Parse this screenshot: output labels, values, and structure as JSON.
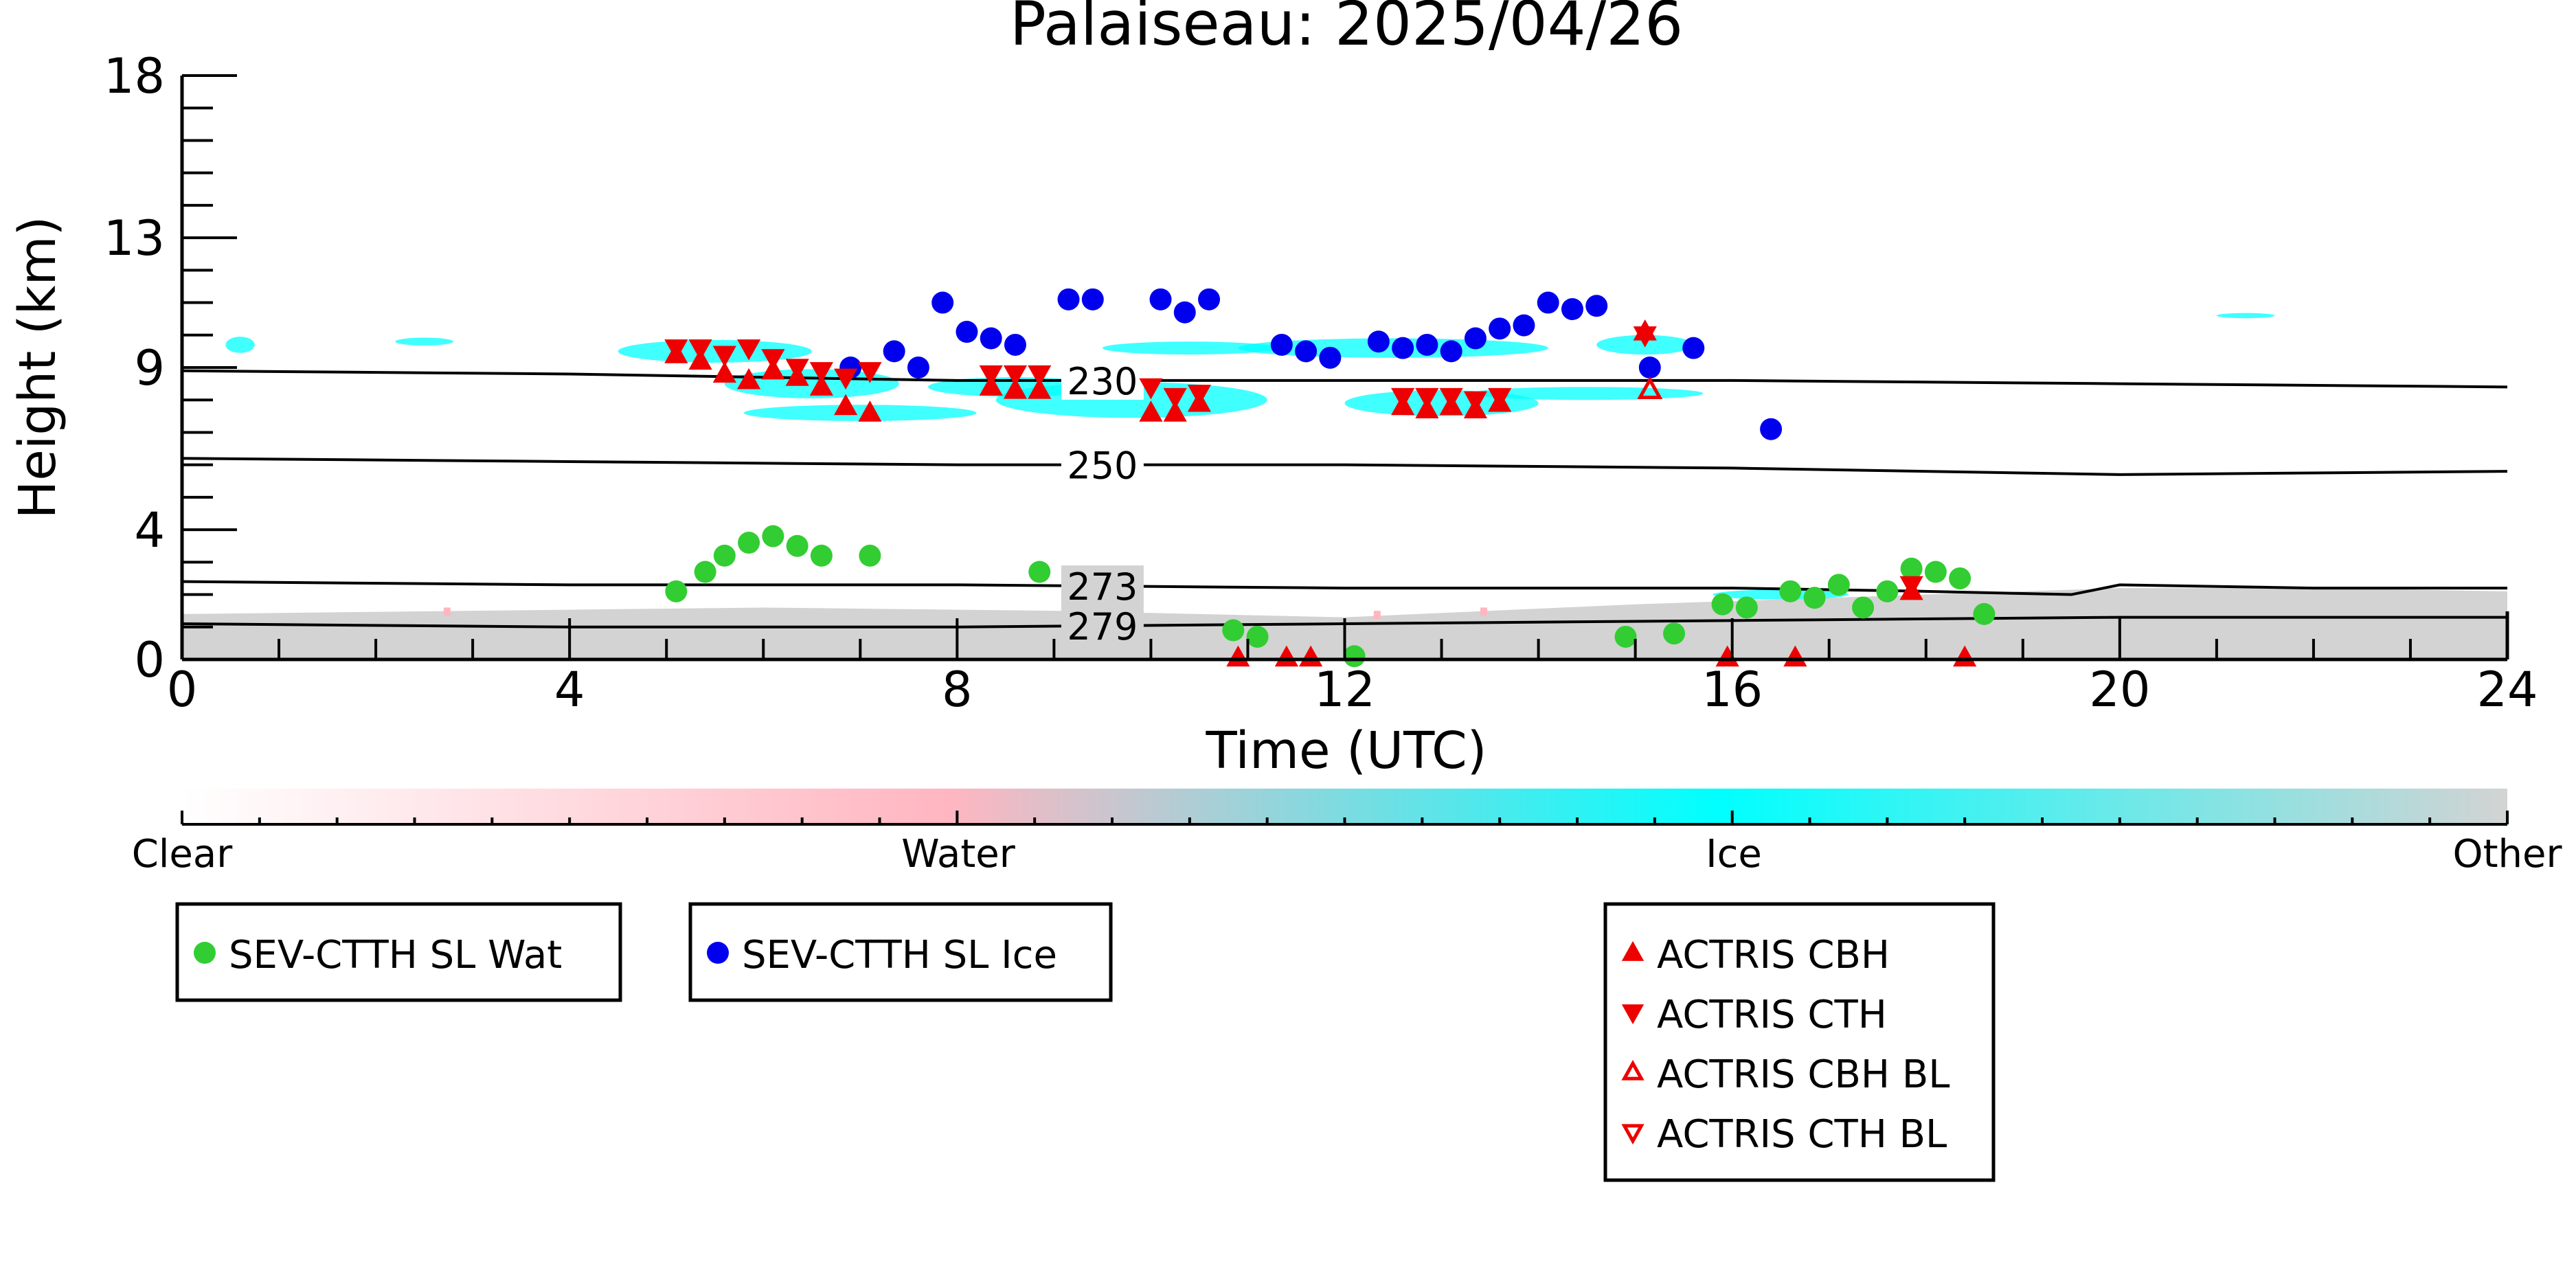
{
  "chart_data": {
    "type": "scatter",
    "title": "Palaiseau: 2025/04/26",
    "xlabel": "Time (UTC)",
    "ylabel": "Height (km)",
    "xlim": [
      0,
      24
    ],
    "ylim": [
      0,
      18
    ],
    "x_ticks": [
      0,
      4,
      8,
      12,
      16,
      20,
      24
    ],
    "y_ticks": [
      0,
      4,
      9,
      13,
      18
    ],
    "y_tick_labels": [
      "0",
      "4",
      "9",
      "13",
      "18"
    ],
    "grid": false,
    "colorbar": {
      "labels": [
        "Clear",
        "Water",
        "Ice",
        "Other"
      ],
      "colors": [
        "#ffffff",
        "#ffb6c1",
        "#00ffff",
        "#d3d3d3"
      ]
    },
    "temperature_contours": [
      {
        "label": "230",
        "label_x": 9.5,
        "points": [
          [
            0,
            8.9
          ],
          [
            4,
            8.8
          ],
          [
            8,
            8.6
          ],
          [
            12,
            8.6
          ],
          [
            16,
            8.6
          ],
          [
            20,
            8.5
          ],
          [
            24,
            8.4
          ]
        ]
      },
      {
        "label": "250",
        "label_x": 9.5,
        "points": [
          [
            0,
            6.2
          ],
          [
            4,
            6.1
          ],
          [
            8,
            6.0
          ],
          [
            12,
            6.0
          ],
          [
            16,
            5.9
          ],
          [
            20,
            5.7
          ],
          [
            24,
            5.8
          ]
        ]
      },
      {
        "label": "273",
        "label_x": 9.5,
        "points": [
          [
            0,
            2.4
          ],
          [
            4,
            2.3
          ],
          [
            8,
            2.3
          ],
          [
            12,
            2.2
          ],
          [
            16,
            2.2
          ],
          [
            18,
            2.1
          ],
          [
            19.5,
            2.0
          ],
          [
            20,
            2.3
          ],
          [
            22,
            2.2
          ],
          [
            24,
            2.2
          ]
        ]
      },
      {
        "label": "279",
        "label_x": 9.5,
        "points": [
          [
            0,
            1.1
          ],
          [
            4,
            1.0
          ],
          [
            8,
            1.0
          ],
          [
            12,
            1.1
          ],
          [
            16,
            1.2
          ],
          [
            20,
            1.3
          ],
          [
            24,
            1.3
          ]
        ]
      }
    ],
    "series": [
      {
        "name": "SEV-CTTH SL Wat",
        "marker": "circle",
        "color": "#32cd32",
        "points": [
          [
            5.1,
            2.1
          ],
          [
            5.4,
            2.7
          ],
          [
            5.6,
            3.2
          ],
          [
            5.85,
            3.6
          ],
          [
            6.1,
            3.8
          ],
          [
            6.35,
            3.5
          ],
          [
            6.6,
            3.2
          ],
          [
            7.1,
            3.2
          ],
          [
            8.85,
            2.7
          ],
          [
            10.85,
            0.9
          ],
          [
            11.1,
            0.7
          ],
          [
            12.1,
            0.1
          ],
          [
            14.9,
            0.7
          ],
          [
            15.4,
            0.8
          ],
          [
            15.9,
            1.7
          ],
          [
            16.15,
            1.6
          ],
          [
            16.6,
            2.1
          ],
          [
            16.85,
            1.9
          ],
          [
            17.1,
            2.3
          ],
          [
            17.35,
            1.6
          ],
          [
            17.6,
            2.1
          ],
          [
            17.85,
            2.8
          ],
          [
            18.1,
            2.7
          ],
          [
            18.35,
            2.5
          ],
          [
            18.6,
            1.4
          ]
        ]
      },
      {
        "name": "SEV-CTTH SL Ice",
        "marker": "circle",
        "color": "#0000ee",
        "points": [
          [
            6.9,
            9.0
          ],
          [
            7.35,
            9.5
          ],
          [
            7.6,
            9.0
          ],
          [
            7.85,
            11.0
          ],
          [
            8.1,
            10.1
          ],
          [
            8.35,
            9.9
          ],
          [
            8.6,
            9.7
          ],
          [
            9.15,
            11.1
          ],
          [
            9.4,
            11.1
          ],
          [
            10.1,
            11.1
          ],
          [
            10.35,
            10.7
          ],
          [
            10.6,
            11.1
          ],
          [
            11.35,
            9.7
          ],
          [
            11.6,
            9.5
          ],
          [
            11.85,
            9.3
          ],
          [
            12.35,
            9.8
          ],
          [
            12.6,
            9.6
          ],
          [
            12.85,
            9.7
          ],
          [
            13.1,
            9.5
          ],
          [
            13.35,
            9.9
          ],
          [
            13.6,
            10.2
          ],
          [
            13.85,
            10.3
          ],
          [
            14.1,
            11.0
          ],
          [
            14.35,
            10.8
          ],
          [
            14.6,
            10.9
          ],
          [
            15.15,
            9.0
          ],
          [
            15.6,
            9.6
          ],
          [
            16.4,
            7.1
          ]
        ]
      },
      {
        "name": "ACTRIS CBH",
        "marker": "triangle-up",
        "color": "#ee0000",
        "points": [
          [
            5.1,
            9.4
          ],
          [
            5.35,
            9.2
          ],
          [
            5.6,
            8.8
          ],
          [
            5.85,
            8.6
          ],
          [
            6.1,
            8.9
          ],
          [
            6.35,
            8.7
          ],
          [
            6.6,
            8.4
          ],
          [
            6.85,
            7.8
          ],
          [
            7.1,
            7.6
          ],
          [
            8.35,
            8.4
          ],
          [
            8.6,
            8.3
          ],
          [
            8.85,
            8.3
          ],
          [
            10.0,
            7.6
          ],
          [
            10.25,
            7.6
          ],
          [
            10.5,
            7.9
          ],
          [
            12.6,
            7.8
          ],
          [
            12.85,
            7.7
          ],
          [
            13.1,
            7.8
          ],
          [
            13.35,
            7.7
          ],
          [
            13.6,
            7.9
          ],
          [
            15.1,
            10.1
          ],
          [
            17.85,
            2.1
          ],
          [
            10.9,
            0.05
          ],
          [
            11.4,
            0.05
          ],
          [
            11.65,
            0.05
          ],
          [
            15.95,
            0.05
          ],
          [
            16.65,
            0.05
          ],
          [
            18.4,
            0.05
          ]
        ]
      },
      {
        "name": "ACTRIS CTH",
        "marker": "triangle-down",
        "color": "#ee0000",
        "points": [
          [
            5.1,
            9.6
          ],
          [
            5.35,
            9.6
          ],
          [
            5.6,
            9.4
          ],
          [
            5.85,
            9.6
          ],
          [
            6.1,
            9.3
          ],
          [
            6.35,
            9.0
          ],
          [
            6.6,
            8.9
          ],
          [
            6.85,
            8.7
          ],
          [
            7.1,
            8.9
          ],
          [
            8.35,
            8.8
          ],
          [
            8.6,
            8.8
          ],
          [
            8.85,
            8.8
          ],
          [
            10.0,
            8.4
          ],
          [
            10.25,
            8.1
          ],
          [
            10.5,
            8.2
          ],
          [
            12.6,
            8.1
          ],
          [
            12.85,
            8.1
          ],
          [
            13.1,
            8.1
          ],
          [
            13.35,
            8.0
          ],
          [
            13.6,
            8.1
          ],
          [
            15.1,
            10.0
          ],
          [
            17.85,
            2.3
          ]
        ]
      },
      {
        "name": "ACTRIS CBH BL",
        "marker": "triangle-up-open",
        "color": "#ee0000",
        "points": [
          [
            15.15,
            8.3
          ]
        ]
      },
      {
        "name": "ACTRIS CTH BL",
        "marker": "triangle-down-open",
        "color": "#ee0000",
        "points": []
      }
    ]
  }
}
